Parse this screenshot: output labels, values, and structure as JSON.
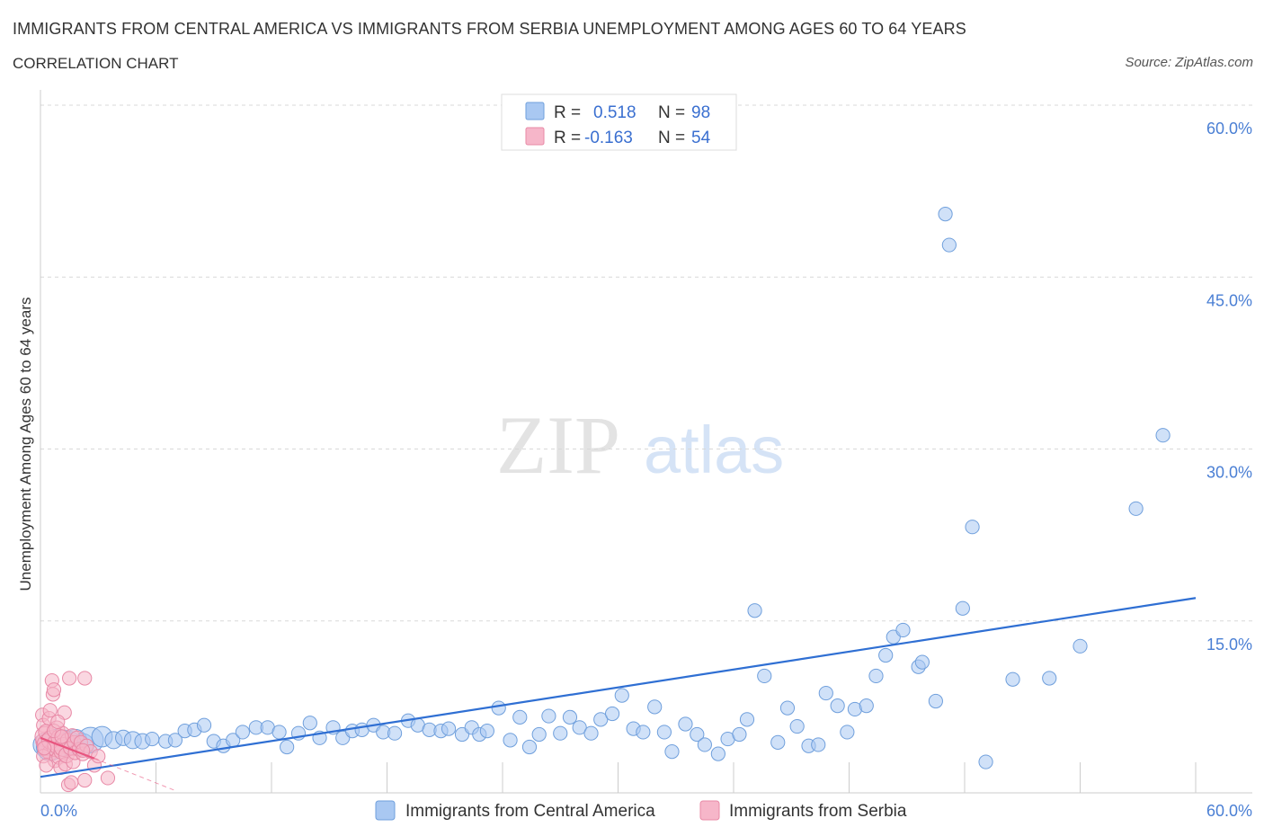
{
  "header": {
    "title": "IMMIGRANTS FROM CENTRAL AMERICA VS IMMIGRANTS FROM SERBIA UNEMPLOYMENT AMONG AGES 60 TO 64 YEARS",
    "subtitle": "CORRELATION CHART",
    "source": "Source: ZipAtlas.com"
  },
  "watermark": {
    "zip": "ZIP",
    "atlas": "atlas"
  },
  "legend": {
    "r_label": "R =",
    "n_label": "N =",
    "rows": [
      {
        "r": "0.518",
        "n": "98",
        "color": "#a9c8f2"
      },
      {
        "r": "-0.163",
        "n": "54",
        "color": "#f6b6c9"
      }
    ]
  },
  "colors": {
    "central_america_fill": "#a9c8f2",
    "central_america_stroke": "#6f9fdc",
    "central_america_line": "#2f6fd3",
    "serbia_fill": "#f6b6c9",
    "serbia_stroke": "#e889a6",
    "serbia_line": "#e8557f",
    "tick_text": "#4a7fd4",
    "grid": "#d8d8d8"
  },
  "chart_data": {
    "type": "scatter",
    "title": "IMMIGRANTS FROM CENTRAL AMERICA VS IMMIGRANTS FROM SERBIA UNEMPLOYMENT AMONG AGES 60 TO 64 YEARS",
    "xlabel": "",
    "ylabel": "Unemployment Among Ages 60 to 64 years",
    "xlim": [
      0,
      60
    ],
    "ylim": [
      0,
      60
    ],
    "x_tick_labels": [
      "0.0%",
      "60.0%"
    ],
    "y_tick_labels": [
      "15.0%",
      "30.0%",
      "45.0%",
      "60.0%"
    ],
    "y_ticks": [
      15,
      30,
      45,
      60
    ],
    "grid": true,
    "legend_placement": "top-center",
    "series": [
      {
        "name": "Immigrants from Central America",
        "trend": {
          "x": [
            0,
            60
          ],
          "y": [
            1.4,
            17.0
          ]
        },
        "points": [
          [
            0.2,
            4.2,
            1.3
          ],
          [
            0.5,
            4.0,
            1.6
          ],
          [
            0.8,
            4.5,
            1.4
          ],
          [
            1.0,
            4.3,
            1.5
          ],
          [
            1.2,
            4.6,
            1.2
          ],
          [
            1.5,
            4.4,
            1.3
          ],
          [
            1.8,
            4.5,
            1.4
          ],
          [
            2.2,
            4.2,
            1.3
          ],
          [
            2.6,
            4.6,
            1.5
          ],
          [
            3.2,
            4.9,
            1.2
          ],
          [
            3.8,
            4.6,
            1.0
          ],
          [
            4.3,
            4.8,
            0.9
          ],
          [
            4.8,
            4.6,
            1.0
          ],
          [
            5.3,
            4.5,
            0.9
          ],
          [
            5.8,
            4.7,
            0.8
          ],
          [
            6.5,
            4.5,
            0.8
          ],
          [
            7.0,
            4.6,
            0.8
          ],
          [
            7.5,
            5.4,
            0.8
          ],
          [
            8.0,
            5.5,
            0.8
          ],
          [
            8.5,
            5.9,
            0.8
          ],
          [
            9.0,
            4.5,
            0.8
          ],
          [
            9.5,
            4.1,
            0.8
          ],
          [
            10.0,
            4.6,
            0.8
          ],
          [
            10.5,
            5.3,
            0.8
          ],
          [
            11.2,
            5.7,
            0.8
          ],
          [
            11.8,
            5.7,
            0.8
          ],
          [
            12.4,
            5.3,
            0.8
          ],
          [
            12.8,
            4.0,
            0.8
          ],
          [
            13.4,
            5.2,
            0.8
          ],
          [
            14.0,
            6.1,
            0.8
          ],
          [
            14.5,
            4.8,
            0.8
          ],
          [
            15.2,
            5.7,
            0.8
          ],
          [
            15.7,
            4.8,
            0.8
          ],
          [
            16.2,
            5.4,
            0.8
          ],
          [
            16.7,
            5.5,
            0.8
          ],
          [
            17.3,
            5.9,
            0.8
          ],
          [
            17.8,
            5.3,
            0.8
          ],
          [
            18.4,
            5.2,
            0.8
          ],
          [
            19.1,
            6.3,
            0.8
          ],
          [
            19.6,
            5.9,
            0.8
          ],
          [
            20.2,
            5.5,
            0.8
          ],
          [
            20.8,
            5.4,
            0.8
          ],
          [
            21.2,
            5.6,
            0.8
          ],
          [
            21.9,
            5.1,
            0.8
          ],
          [
            22.4,
            5.7,
            0.8
          ],
          [
            22.8,
            5.1,
            0.8
          ],
          [
            23.2,
            5.4,
            0.8
          ],
          [
            23.8,
            7.4,
            0.8
          ],
          [
            24.4,
            4.6,
            0.8
          ],
          [
            24.9,
            6.6,
            0.8
          ],
          [
            25.4,
            4.0,
            0.8
          ],
          [
            25.9,
            5.1,
            0.8
          ],
          [
            26.4,
            6.7,
            0.8
          ],
          [
            27.0,
            5.2,
            0.8
          ],
          [
            27.5,
            6.6,
            0.8
          ],
          [
            28.0,
            5.7,
            0.8
          ],
          [
            28.6,
            5.2,
            0.8
          ],
          [
            29.1,
            6.4,
            0.8
          ],
          [
            29.7,
            6.9,
            0.8
          ],
          [
            30.2,
            8.5,
            0.8
          ],
          [
            30.8,
            5.6,
            0.8
          ],
          [
            31.3,
            5.3,
            0.8
          ],
          [
            31.9,
            7.5,
            0.8
          ],
          [
            32.4,
            5.3,
            0.8
          ],
          [
            32.8,
            3.6,
            0.8
          ],
          [
            33.5,
            6.0,
            0.8
          ],
          [
            34.1,
            5.1,
            0.8
          ],
          [
            34.5,
            4.2,
            0.8
          ],
          [
            35.2,
            3.4,
            0.8
          ],
          [
            35.7,
            4.7,
            0.8
          ],
          [
            36.3,
            5.1,
            0.8
          ],
          [
            36.7,
            6.4,
            0.8
          ],
          [
            37.1,
            15.9,
            0.8
          ],
          [
            37.6,
            10.2,
            0.8
          ],
          [
            38.3,
            4.4,
            0.8
          ],
          [
            38.8,
            7.4,
            0.8
          ],
          [
            39.3,
            5.8,
            0.8
          ],
          [
            39.9,
            4.1,
            0.8
          ],
          [
            40.4,
            4.2,
            0.8
          ],
          [
            40.8,
            8.7,
            0.8
          ],
          [
            41.4,
            7.6,
            0.8
          ],
          [
            41.9,
            5.3,
            0.8
          ],
          [
            42.3,
            7.3,
            0.8
          ],
          [
            42.9,
            7.6,
            0.8
          ],
          [
            43.4,
            10.2,
            0.8
          ],
          [
            43.9,
            12.0,
            0.8
          ],
          [
            44.3,
            13.6,
            0.8
          ],
          [
            44.8,
            14.2,
            0.8
          ],
          [
            45.6,
            11.0,
            0.8
          ],
          [
            45.8,
            11.4,
            0.8
          ],
          [
            46.5,
            8.0,
            0.8
          ],
          [
            47.0,
            50.5,
            0.8
          ],
          [
            47.2,
            47.8,
            0.8
          ],
          [
            48.4,
            23.2,
            0.8
          ],
          [
            49.1,
            2.7,
            0.8
          ],
          [
            50.5,
            9.9,
            0.8
          ],
          [
            47.9,
            16.1,
            0.8
          ],
          [
            52.4,
            10.0,
            0.8
          ],
          [
            54.0,
            12.8,
            0.8
          ],
          [
            56.9,
            24.8,
            0.8
          ],
          [
            58.3,
            31.2,
            0.8
          ]
        ]
      },
      {
        "name": "Immigrants from Serbia",
        "trend": {
          "x": [
            0,
            2.8
          ],
          "y": [
            4.8,
            3.0
          ]
        },
        "trend_extended": {
          "x": [
            2.8,
            7.0
          ],
          "y": [
            3.0,
            0.2
          ]
        },
        "points": [
          [
            0.1,
            6.8,
            0.8
          ],
          [
            0.15,
            5.9,
            0.8
          ],
          [
            0.2,
            4.5,
            1.0
          ],
          [
            0.25,
            4.9,
            1.2
          ],
          [
            0.3,
            5.3,
            0.9
          ],
          [
            0.35,
            3.8,
            1.0
          ],
          [
            0.4,
            4.2,
            1.3
          ],
          [
            0.45,
            6.5,
            0.8
          ],
          [
            0.5,
            3.5,
            0.9
          ],
          [
            0.55,
            4.6,
            1.1
          ],
          [
            0.6,
            9.8,
            0.8
          ],
          [
            0.65,
            8.6,
            0.8
          ],
          [
            0.7,
            9.0,
            0.8
          ],
          [
            0.75,
            2.8,
            0.8
          ],
          [
            0.8,
            3.9,
            1.0
          ],
          [
            0.85,
            5.6,
            0.9
          ],
          [
            0.9,
            4.3,
            1.2
          ],
          [
            0.95,
            3.1,
            0.8
          ],
          [
            1.0,
            4.8,
            1.0
          ],
          [
            1.05,
            2.2,
            0.8
          ],
          [
            1.1,
            3.6,
            0.9
          ],
          [
            1.15,
            5.2,
            0.8
          ],
          [
            1.2,
            4.0,
            1.1
          ],
          [
            1.25,
            7.0,
            0.8
          ],
          [
            1.3,
            2.5,
            0.8
          ],
          [
            1.35,
            3.3,
            0.9
          ],
          [
            1.4,
            4.6,
            0.8
          ],
          [
            1.45,
            0.7,
            0.8
          ],
          [
            1.5,
            10.0,
            0.8
          ],
          [
            1.55,
            3.9,
            0.8
          ],
          [
            1.6,
            0.9,
            0.8
          ],
          [
            1.65,
            5.0,
            0.8
          ],
          [
            1.7,
            2.7,
            0.8
          ],
          [
            1.75,
            4.4,
            0.8
          ],
          [
            1.8,
            3.5,
            0.8
          ],
          [
            1.9,
            4.8,
            0.8
          ],
          [
            2.0,
            3.8,
            0.8
          ],
          [
            2.1,
            4.4,
            0.8
          ],
          [
            2.2,
            3.4,
            0.8
          ],
          [
            2.3,
            1.1,
            0.8
          ],
          [
            2.4,
            4.1,
            0.8
          ],
          [
            2.6,
            3.6,
            0.8
          ],
          [
            2.8,
            2.4,
            0.8
          ],
          [
            0.15,
            3.2,
            0.8
          ],
          [
            0.3,
            2.4,
            0.8
          ],
          [
            0.5,
            7.2,
            0.8
          ],
          [
            0.7,
            5.4,
            0.8
          ],
          [
            0.9,
            6.2,
            0.8
          ],
          [
            1.1,
            4.9,
            0.8
          ],
          [
            0.2,
            3.9,
            0.8
          ],
          [
            2.2,
            3.7,
            0.8
          ],
          [
            3.0,
            3.2,
            0.8
          ],
          [
            3.5,
            1.3,
            0.8
          ],
          [
            2.3,
            10.0,
            0.8
          ]
        ]
      }
    ]
  }
}
